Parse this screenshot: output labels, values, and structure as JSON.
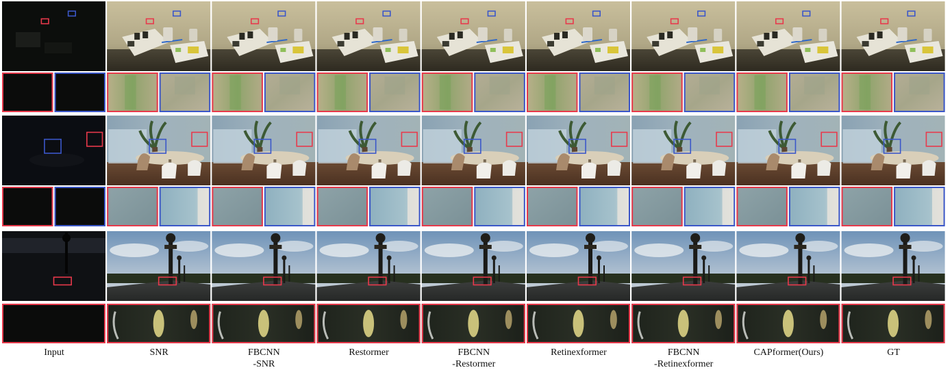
{
  "methods": [
    {
      "key": "input",
      "label": "Input"
    },
    {
      "key": "snr",
      "label": "SNR"
    },
    {
      "key": "fbcnn-snr",
      "label": "FBCNN\n-SNR"
    },
    {
      "key": "restormer",
      "label": "Restormer"
    },
    {
      "key": "fbcnn-restormer",
      "label": "FBCNN\n-Restormer"
    },
    {
      "key": "retinexformer",
      "label": "Retinexformer"
    },
    {
      "key": "fbcnn-retinexformer",
      "label": "FBCNN\n-Retinexformer"
    },
    {
      "key": "capformer",
      "label": "CAPformer(Ours)"
    },
    {
      "key": "gt",
      "label": "GT"
    }
  ],
  "colors": {
    "box_red": "#e8394b",
    "box_blue": "#3b57c9",
    "background": "#ffffff"
  },
  "scenes": [
    {
      "name": "indoor-workshop",
      "dark_input": "#0c0e0c"
    },
    {
      "name": "meeting-room",
      "dark_input": "#0b0d12"
    },
    {
      "name": "bridge-lamppost",
      "dark_input": "#0f1114"
    }
  ]
}
